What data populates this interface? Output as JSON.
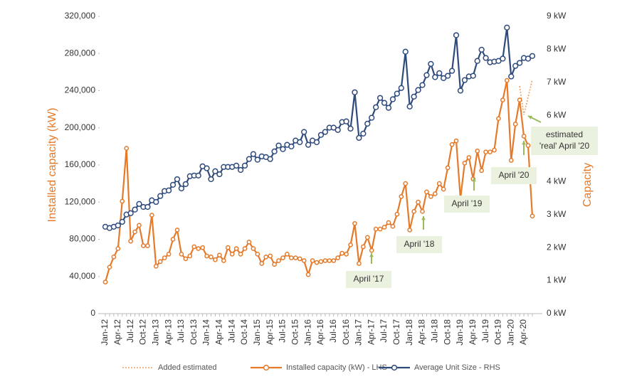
{
  "chart_data": {
    "type": "line",
    "y_label": "Installed capacity (kW)",
    "y2_label": "Capacity",
    "categories": [
      "Jan-12",
      null,
      null,
      "Apr-12",
      null,
      null,
      "Jul-12",
      null,
      null,
      "Oct-12",
      null,
      null,
      "Jan-13",
      null,
      null,
      "Apr-13",
      null,
      null,
      "Jul-13",
      null,
      null,
      "Oct-13",
      null,
      null,
      "Jan-14",
      null,
      null,
      "Apr-14",
      null,
      null,
      "Jul-14",
      null,
      null,
      "Oct-14",
      null,
      null,
      "Jan-15",
      null,
      null,
      "Apr-15",
      null,
      null,
      "Jul-15",
      null,
      null,
      "Oct-15",
      null,
      null,
      "Jan-16",
      null,
      null,
      "Apr-16",
      null,
      null,
      "Jul-16",
      null,
      null,
      "Oct-16",
      null,
      null,
      "Jan-17",
      null,
      null,
      "Apr-17",
      null,
      null,
      "Jul-17",
      null,
      null,
      "Oct-17",
      null,
      null,
      "Jan-18",
      null,
      null,
      "Apr-18",
      null,
      null,
      "Jul-18",
      null,
      null,
      "Oct-18",
      null,
      null,
      "Jan-19",
      null,
      null,
      "Apr-19",
      null,
      null,
      "Jul-19",
      null,
      null,
      "Oct-19",
      null,
      null,
      "Jan-20",
      null,
      null,
      "Apr-20",
      null,
      null
    ],
    "series": [
      {
        "name": "Added estimated",
        "color": "#f0a060",
        "style": "dotted",
        "values": [
          null,
          null,
          null,
          null,
          null,
          null,
          null,
          null,
          null,
          null,
          null,
          null,
          null,
          null,
          null,
          null,
          null,
          null,
          null,
          null,
          null,
          null,
          null,
          null,
          null,
          null,
          null,
          null,
          null,
          null,
          null,
          null,
          null,
          null,
          null,
          null,
          null,
          null,
          null,
          null,
          null,
          null,
          null,
          null,
          null,
          null,
          null,
          null,
          null,
          null,
          null,
          null,
          null,
          null,
          null,
          null,
          null,
          null,
          null,
          null,
          null,
          null,
          null,
          null,
          null,
          null,
          null,
          null,
          null,
          null,
          null,
          null,
          null,
          null,
          null,
          null,
          null,
          null,
          null,
          null,
          null,
          null,
          null,
          null,
          null,
          null,
          null,
          null,
          null,
          null,
          null,
          null,
          null,
          null,
          null,
          null,
          null,
          null,
          245000,
          214000,
          233000,
          252000
        ]
      },
      {
        "name": "Installed capacity (kW) - LHS",
        "color": "#e57a2a",
        "style": "solid",
        "values": [
          34000,
          50000,
          61000,
          70000,
          121000,
          178000,
          78000,
          88000,
          95000,
          73000,
          73000,
          106000,
          51000,
          56000,
          60000,
          64000,
          80000,
          90000,
          64000,
          59000,
          62000,
          72000,
          70000,
          71000,
          62000,
          61000,
          58000,
          63000,
          57000,
          71000,
          64000,
          70000,
          64000,
          70000,
          77000,
          70000,
          64000,
          54000,
          61000,
          62000,
          53000,
          57000,
          60000,
          64000,
          60000,
          60000,
          59000,
          57000,
          42000,
          57000,
          55000,
          56000,
          57000,
          57000,
          57000,
          60000,
          65000,
          64000,
          74000,
          97000,
          54000,
          72000,
          82000,
          68000,
          91000,
          91000,
          93000,
          98000,
          94000,
          107000,
          126000,
          140000,
          90000,
          110000,
          120000,
          110000,
          131000,
          126000,
          129000,
          140000,
          134000,
          157000,
          182000,
          186000,
          124000,
          162000,
          168000,
          145000,
          175000,
          154000,
          174000,
          174000,
          176000,
          210000,
          230000,
          251000,
          165000,
          204000,
          230000,
          191000,
          181000,
          105000
        ]
      },
      {
        "name": "Average Unit Size - RHS",
        "color": "#2f4b7c",
        "style": "solid",
        "axis": "y2",
        "values": [
          2.63,
          2.59,
          2.63,
          2.67,
          2.78,
          3.0,
          3.04,
          3.15,
          3.32,
          3.23,
          3.23,
          3.43,
          3.38,
          3.56,
          3.71,
          3.73,
          3.9,
          4.07,
          3.79,
          3.92,
          4.16,
          4.18,
          4.18,
          4.46,
          4.4,
          4.07,
          4.31,
          4.22,
          4.44,
          4.44,
          4.44,
          4.48,
          4.35,
          4.48,
          4.68,
          4.83,
          4.66,
          4.76,
          4.74,
          4.68,
          4.91,
          5.09,
          4.98,
          5.11,
          5.06,
          5.24,
          5.19,
          5.5,
          5.11,
          5.24,
          5.19,
          5.41,
          5.5,
          5.63,
          5.63,
          5.56,
          5.8,
          5.82,
          5.6,
          6.7,
          5.32,
          5.45,
          5.75,
          5.93,
          6.25,
          6.53,
          6.38,
          6.23,
          6.49,
          6.66,
          6.83,
          7.93,
          6.27,
          6.57,
          6.77,
          6.92,
          7.22,
          7.56,
          7.16,
          7.28,
          7.13,
          7.2,
          7.35,
          8.43,
          6.75,
          7.07,
          7.18,
          7.2,
          7.65,
          7.99,
          7.74,
          7.61,
          7.63,
          7.65,
          7.72,
          8.66,
          7.18,
          7.5,
          7.59,
          7.74,
          7.72,
          7.8
        ]
      }
    ],
    "ylim": [
      0,
      320000
    ],
    "yticks": [
      0,
      {
        "value": 40000,
        "label": "40,000"
      },
      {
        "value": 80000,
        "label": "80,000"
      },
      {
        "value": 120000,
        "label": "120,000"
      },
      {
        "value": 160000,
        "label": "160,000"
      },
      {
        "value": 200000,
        "label": "200,000"
      },
      {
        "value": 240000,
        "label": "240,000"
      },
      {
        "value": 280000,
        "label": "280,000"
      },
      {
        "value": 320000,
        "label": "320,000"
      }
    ],
    "y2lim": [
      0,
      9
    ],
    "y2ticks": [
      {
        "value": 0,
        "label": "0 kW"
      },
      {
        "value": 1,
        "label": "1 kW"
      },
      {
        "value": 2,
        "label": "2 kW"
      },
      {
        "value": 3,
        "label": "3 kW"
      },
      {
        "value": 4,
        "label": "4 kW"
      },
      {
        "value": 5,
        "label": "5 kW"
      },
      {
        "value": 6,
        "label": "6 kW"
      },
      {
        "value": 7,
        "label": "7 kW"
      },
      {
        "value": 8,
        "label": "8 kW"
      },
      {
        "value": 9,
        "label": "9 kW"
      }
    ],
    "legend": "bottom",
    "annotations": [
      [
        "April '17"
      ],
      [
        "April '18"
      ],
      [
        "April '19"
      ],
      [
        "April '20"
      ],
      [
        "estimated",
        "'real' April '20"
      ]
    ]
  }
}
